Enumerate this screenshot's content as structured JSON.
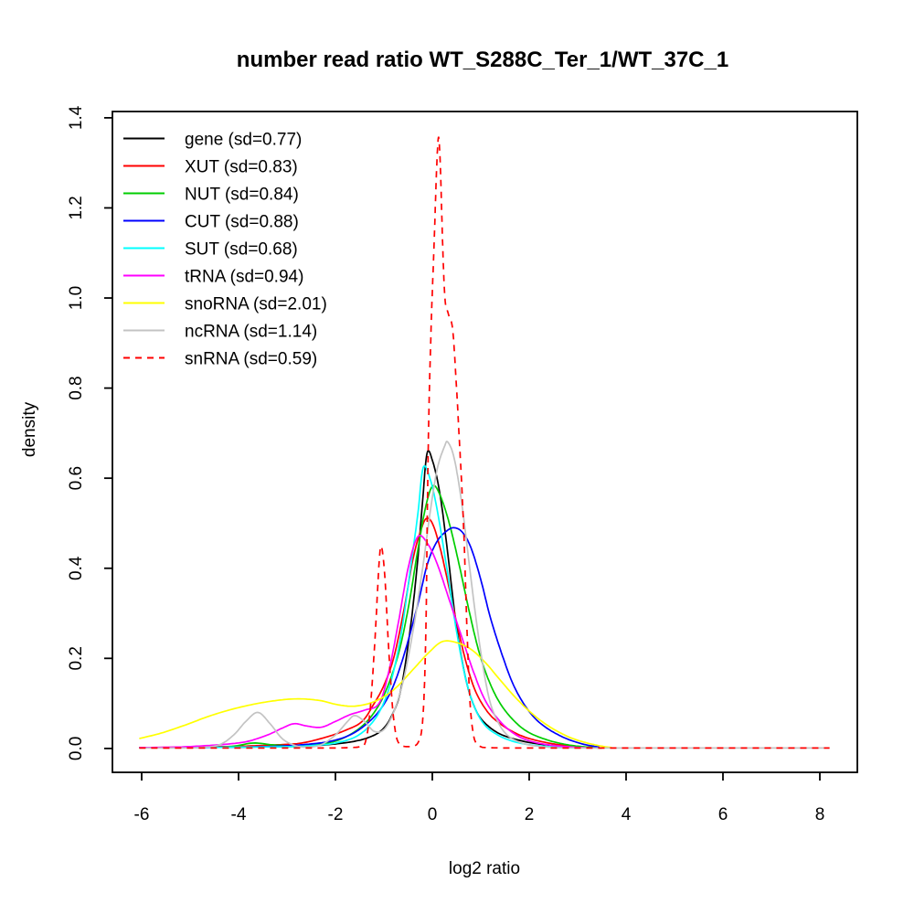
{
  "chart_data": {
    "type": "line",
    "title": "number read ratio WT_S288C_Ter_1/WT_37C_1",
    "xlabel": "log2 ratio",
    "ylabel": "density",
    "xlim": [
      -6.604,
      8.774
    ],
    "ylim": [
      -0.053,
      1.414
    ],
    "x_ticks": [
      -6,
      -4,
      -2,
      0,
      2,
      4,
      6,
      8
    ],
    "y_ticks": [
      0.0,
      0.2,
      0.4,
      0.6,
      0.8,
      1.0,
      1.2,
      1.4
    ],
    "grid": false,
    "legend_position": "top-left",
    "series": [
      {
        "name": "gene",
        "label": "gene (sd=0.77)",
        "color": "#000000",
        "linetype": "solid",
        "points": [
          [
            -6.05,
            0.002
          ],
          [
            -5,
            0.002
          ],
          [
            -4,
            0.003
          ],
          [
            -3,
            0.004
          ],
          [
            -2.5,
            0.006
          ],
          [
            -2,
            0.01
          ],
          [
            -1.6,
            0.016
          ],
          [
            -1.3,
            0.025
          ],
          [
            -1.05,
            0.04
          ],
          [
            -0.85,
            0.07
          ],
          [
            -0.65,
            0.13
          ],
          [
            -0.45,
            0.27
          ],
          [
            -0.3,
            0.42
          ],
          [
            -0.2,
            0.55
          ],
          [
            -0.11,
            0.655
          ],
          [
            0,
            0.64
          ],
          [
            0.15,
            0.57
          ],
          [
            0.3,
            0.45
          ],
          [
            0.5,
            0.27
          ],
          [
            0.7,
            0.15
          ],
          [
            0.9,
            0.085
          ],
          [
            1.1,
            0.055
          ],
          [
            1.4,
            0.032
          ],
          [
            1.8,
            0.018
          ],
          [
            2.2,
            0.01
          ],
          [
            2.7,
            0.005
          ],
          [
            3.2,
            0.002
          ],
          [
            3.5,
            0.001
          ]
        ]
      },
      {
        "name": "XUT",
        "label": "XUT (sd=0.83)",
        "color": "#FF0000",
        "linetype": "solid",
        "points": [
          [
            -6.05,
            0.002
          ],
          [
            -5,
            0.003
          ],
          [
            -4,
            0.005
          ],
          [
            -3.2,
            0.008
          ],
          [
            -2.7,
            0.012
          ],
          [
            -2.2,
            0.025
          ],
          [
            -1.8,
            0.04
          ],
          [
            -1.45,
            0.06
          ],
          [
            -1.2,
            0.1
          ],
          [
            -1,
            0.14
          ],
          [
            -0.8,
            0.2
          ],
          [
            -0.6,
            0.3
          ],
          [
            -0.4,
            0.42
          ],
          [
            -0.25,
            0.48
          ],
          [
            -0.13,
            0.51
          ],
          [
            0,
            0.5
          ],
          [
            0.15,
            0.45
          ],
          [
            0.3,
            0.38
          ],
          [
            0.5,
            0.28
          ],
          [
            0.7,
            0.19
          ],
          [
            0.9,
            0.125
          ],
          [
            1.15,
            0.08
          ],
          [
            1.4,
            0.055
          ],
          [
            1.7,
            0.035
          ],
          [
            2,
            0.022
          ],
          [
            2.4,
            0.012
          ],
          [
            2.8,
            0.006
          ],
          [
            3.2,
            0.003
          ],
          [
            3.5,
            0.001
          ]
        ]
      },
      {
        "name": "NUT",
        "label": "NUT (sd=0.84)",
        "color": "#00CD00",
        "linetype": "solid",
        "points": [
          [
            -6.05,
            0.002
          ],
          [
            -5,
            0.002
          ],
          [
            -4.2,
            0.004
          ],
          [
            -3.7,
            0.012
          ],
          [
            -3.3,
            0.008
          ],
          [
            -2.8,
            0.006
          ],
          [
            -2.3,
            0.01
          ],
          [
            -1.9,
            0.02
          ],
          [
            -1.5,
            0.045
          ],
          [
            -1.2,
            0.08
          ],
          [
            -0.95,
            0.13
          ],
          [
            -0.7,
            0.21
          ],
          [
            -0.5,
            0.31
          ],
          [
            -0.3,
            0.44
          ],
          [
            -0.15,
            0.53
          ],
          [
            0,
            0.582
          ],
          [
            0.15,
            0.565
          ],
          [
            0.35,
            0.5
          ],
          [
            0.55,
            0.41
          ],
          [
            0.75,
            0.31
          ],
          [
            0.95,
            0.22
          ],
          [
            1.15,
            0.155
          ],
          [
            1.4,
            0.1
          ],
          [
            1.7,
            0.06
          ],
          [
            2,
            0.035
          ],
          [
            2.4,
            0.018
          ],
          [
            2.8,
            0.008
          ],
          [
            3.2,
            0.003
          ],
          [
            3.5,
            0.001
          ]
        ]
      },
      {
        "name": "CUT",
        "label": "CUT (sd=0.88)",
        "color": "#0000FF",
        "linetype": "solid",
        "points": [
          [
            -6.05,
            0.002
          ],
          [
            -5,
            0.002
          ],
          [
            -4,
            0.003
          ],
          [
            -3.2,
            0.005
          ],
          [
            -2.6,
            0.009
          ],
          [
            -2.1,
            0.016
          ],
          [
            -1.7,
            0.03
          ],
          [
            -1.35,
            0.055
          ],
          [
            -1.05,
            0.09
          ],
          [
            -0.8,
            0.14
          ],
          [
            -0.55,
            0.22
          ],
          [
            -0.3,
            0.32
          ],
          [
            -0.1,
            0.41
          ],
          [
            0.1,
            0.46
          ],
          [
            0.3,
            0.483
          ],
          [
            0.45,
            0.49
          ],
          [
            0.62,
            0.48
          ],
          [
            0.8,
            0.445
          ],
          [
            1,
            0.375
          ],
          [
            1.2,
            0.29
          ],
          [
            1.45,
            0.205
          ],
          [
            1.7,
            0.135
          ],
          [
            2,
            0.082
          ],
          [
            2.3,
            0.05
          ],
          [
            2.7,
            0.025
          ],
          [
            3.1,
            0.01
          ],
          [
            3.45,
            0.003
          ]
        ]
      },
      {
        "name": "SUT",
        "label": "SUT (sd=0.68)",
        "color": "#00FFFF",
        "linetype": "solid",
        "points": [
          [
            -6.05,
            0.002
          ],
          [
            -5,
            0.002
          ],
          [
            -4,
            0.003
          ],
          [
            -3,
            0.004
          ],
          [
            -2.4,
            0.007
          ],
          [
            -2,
            0.012
          ],
          [
            -1.6,
            0.025
          ],
          [
            -1.3,
            0.05
          ],
          [
            -1.05,
            0.09
          ],
          [
            -0.85,
            0.15
          ],
          [
            -0.65,
            0.25
          ],
          [
            -0.45,
            0.4
          ],
          [
            -0.3,
            0.52
          ],
          [
            -0.19,
            0.623
          ],
          [
            -0.05,
            0.6
          ],
          [
            0.1,
            0.53
          ],
          [
            0.3,
            0.4
          ],
          [
            0.5,
            0.26
          ],
          [
            0.7,
            0.15
          ],
          [
            0.9,
            0.085
          ],
          [
            1.1,
            0.05
          ],
          [
            1.35,
            0.03
          ],
          [
            1.6,
            0.018
          ],
          [
            1.9,
            0.01
          ],
          [
            2.3,
            0.005
          ],
          [
            2.8,
            0.002
          ]
        ]
      },
      {
        "name": "tRNA",
        "label": "tRNA (sd=0.94)",
        "color": "#FF00FF",
        "linetype": "solid",
        "points": [
          [
            -6.05,
            0.002
          ],
          [
            -5.3,
            0.003
          ],
          [
            -4.7,
            0.006
          ],
          [
            -4.2,
            0.01
          ],
          [
            -3.8,
            0.016
          ],
          [
            -3.4,
            0.03
          ],
          [
            -3.1,
            0.045
          ],
          [
            -2.85,
            0.055
          ],
          [
            -2.6,
            0.05
          ],
          [
            -2.3,
            0.047
          ],
          [
            -2,
            0.06
          ],
          [
            -1.7,
            0.075
          ],
          [
            -1.4,
            0.085
          ],
          [
            -1.1,
            0.1
          ],
          [
            -0.9,
            0.17
          ],
          [
            -0.7,
            0.28
          ],
          [
            -0.5,
            0.4
          ],
          [
            -0.3,
            0.47
          ],
          [
            -0.1,
            0.455
          ],
          [
            0.1,
            0.41
          ],
          [
            0.35,
            0.33
          ],
          [
            0.6,
            0.25
          ],
          [
            0.85,
            0.17
          ],
          [
            1.1,
            0.105
          ],
          [
            1.4,
            0.06
          ],
          [
            1.7,
            0.032
          ],
          [
            2,
            0.017
          ],
          [
            2.4,
            0.008
          ],
          [
            2.9,
            0.003
          ],
          [
            3.3,
            0.001
          ]
        ]
      },
      {
        "name": "snoRNA",
        "label": "snoRNA (sd=2.01)",
        "color": "#FFFF00",
        "linetype": "solid",
        "points": [
          [
            -6.05,
            0.022
          ],
          [
            -5.6,
            0.034
          ],
          [
            -5.1,
            0.052
          ],
          [
            -4.6,
            0.072
          ],
          [
            -4.1,
            0.088
          ],
          [
            -3.6,
            0.1
          ],
          [
            -3.1,
            0.108
          ],
          [
            -2.7,
            0.11
          ],
          [
            -2.3,
            0.106
          ],
          [
            -1.95,
            0.097
          ],
          [
            -1.6,
            0.094
          ],
          [
            -1.2,
            0.104
          ],
          [
            -0.8,
            0.13
          ],
          [
            -0.4,
            0.175
          ],
          [
            -0.1,
            0.21
          ],
          [
            0.2,
            0.237
          ],
          [
            0.5,
            0.235
          ],
          [
            0.8,
            0.22
          ],
          [
            1.1,
            0.19
          ],
          [
            1.4,
            0.152
          ],
          [
            1.7,
            0.115
          ],
          [
            2,
            0.083
          ],
          [
            2.3,
            0.057
          ],
          [
            2.6,
            0.037
          ],
          [
            2.9,
            0.022
          ],
          [
            3.2,
            0.012
          ],
          [
            3.5,
            0.005
          ],
          [
            3.7,
            0.002
          ]
        ]
      },
      {
        "name": "ncRNA",
        "label": "ncRNA (sd=1.14)",
        "color": "#C3C3C3",
        "linetype": "solid",
        "points": [
          [
            -6.05,
            0.001
          ],
          [
            -5.3,
            0.001
          ],
          [
            -4.8,
            0.002
          ],
          [
            -4.4,
            0.008
          ],
          [
            -4.1,
            0.03
          ],
          [
            -3.85,
            0.06
          ],
          [
            -3.6,
            0.08
          ],
          [
            -3.35,
            0.055
          ],
          [
            -3.1,
            0.022
          ],
          [
            -2.85,
            0.007
          ],
          [
            -2.6,
            0.003
          ],
          [
            -2.3,
            0.008
          ],
          [
            -2,
            0.03
          ],
          [
            -1.75,
            0.06
          ],
          [
            -1.6,
            0.073
          ],
          [
            -1.4,
            0.06
          ],
          [
            -1.2,
            0.038
          ],
          [
            -1,
            0.042
          ],
          [
            -0.8,
            0.08
          ],
          [
            -0.6,
            0.15
          ],
          [
            -0.4,
            0.26
          ],
          [
            -0.2,
            0.4
          ],
          [
            -0.05,
            0.52
          ],
          [
            0.1,
            0.62
          ],
          [
            0.25,
            0.67
          ],
          [
            0.32,
            0.68
          ],
          [
            0.45,
            0.645
          ],
          [
            0.6,
            0.55
          ],
          [
            0.75,
            0.42
          ],
          [
            0.9,
            0.29
          ],
          [
            1.05,
            0.18
          ],
          [
            1.2,
            0.1
          ],
          [
            1.4,
            0.05
          ],
          [
            1.6,
            0.025
          ],
          [
            1.85,
            0.012
          ],
          [
            2.1,
            0.006
          ],
          [
            2.5,
            0.002
          ],
          [
            3,
            0.001
          ],
          [
            4,
            0.001
          ],
          [
            5,
            0.001
          ],
          [
            6,
            0.001
          ],
          [
            7,
            0.001
          ],
          [
            8.2,
            0.001
          ]
        ]
      },
      {
        "name": "snRNA",
        "label": "snRNA (sd=0.59)",
        "color": "#FF0000",
        "linetype": "dashed",
        "points": [
          [
            -6.05,
            0.001
          ],
          [
            -5,
            0.001
          ],
          [
            -4,
            0.001
          ],
          [
            -3,
            0.001
          ],
          [
            -2.4,
            0.001
          ],
          [
            -2,
            0.001
          ],
          [
            -1.7,
            0.002
          ],
          [
            -1.5,
            0.004
          ],
          [
            -1.38,
            0.015
          ],
          [
            -1.28,
            0.09
          ],
          [
            -1.18,
            0.25
          ],
          [
            -1.1,
            0.41
          ],
          [
            -1.05,
            0.448
          ],
          [
            -0.98,
            0.38
          ],
          [
            -0.9,
            0.22
          ],
          [
            -0.82,
            0.09
          ],
          [
            -0.75,
            0.03
          ],
          [
            -0.68,
            0.01
          ],
          [
            -0.6,
            0.005
          ],
          [
            -0.5,
            0.004
          ],
          [
            -0.4,
            0.005
          ],
          [
            -0.3,
            0.012
          ],
          [
            -0.22,
            0.04
          ],
          [
            -0.17,
            0.12
          ],
          [
            -0.13,
            0.28
          ],
          [
            -0.1,
            0.55
          ],
          [
            -0.07,
            0.75
          ],
          [
            -0.02,
            0.95
          ],
          [
            0.04,
            1.13
          ],
          [
            0.09,
            1.29
          ],
          [
            0.13,
            1.357
          ],
          [
            0.17,
            1.28
          ],
          [
            0.21,
            1.13
          ],
          [
            0.26,
            1.0
          ],
          [
            0.33,
            0.965
          ],
          [
            0.42,
            0.93
          ],
          [
            0.5,
            0.8
          ],
          [
            0.56,
            0.68
          ],
          [
            0.6,
            0.6
          ],
          [
            0.66,
            0.45
          ],
          [
            0.72,
            0.25
          ],
          [
            0.78,
            0.1
          ],
          [
            0.85,
            0.03
          ],
          [
            0.92,
            0.01
          ],
          [
            1.0,
            0.004
          ],
          [
            1.1,
            0.002
          ],
          [
            1.5,
            0.001
          ],
          [
            2,
            0.001
          ],
          [
            3,
            0.001
          ],
          [
            4,
            0.001
          ],
          [
            5,
            0.001
          ],
          [
            6,
            0.001
          ],
          [
            7,
            0.001
          ],
          [
            8.2,
            0.001
          ]
        ]
      }
    ]
  }
}
